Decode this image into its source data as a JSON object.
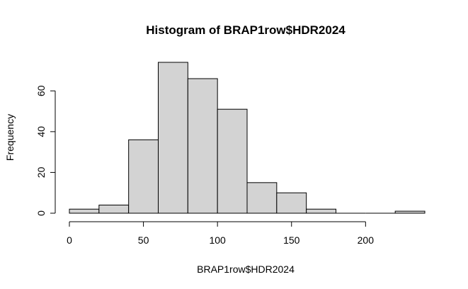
{
  "chart_data": {
    "type": "bar",
    "title": "Histogram of BRAP1row$HDR2024",
    "xlabel": "BRAP1row$HDR2024",
    "ylabel": "Frequency",
    "bins": [
      {
        "start": 0,
        "end": 20,
        "count": 2
      },
      {
        "start": 20,
        "end": 40,
        "count": 4
      },
      {
        "start": 40,
        "end": 60,
        "count": 36
      },
      {
        "start": 60,
        "end": 80,
        "count": 74
      },
      {
        "start": 80,
        "end": 100,
        "count": 66
      },
      {
        "start": 100,
        "end": 120,
        "count": 51
      },
      {
        "start": 120,
        "end": 140,
        "count": 15
      },
      {
        "start": 140,
        "end": 160,
        "count": 10
      },
      {
        "start": 160,
        "end": 180,
        "count": 2
      },
      {
        "start": 180,
        "end": 200,
        "count": 0
      },
      {
        "start": 200,
        "end": 220,
        "count": 0
      },
      {
        "start": 220,
        "end": 240,
        "count": 1
      }
    ],
    "xlim": [
      0,
      240
    ],
    "ylim": [
      0,
      74
    ],
    "xticks": [
      0,
      50,
      100,
      150,
      200
    ],
    "yticks": [
      0,
      20,
      40,
      60
    ],
    "grid": false,
    "colors": {
      "bar_fill": "#d3d3d3",
      "bar_stroke": "#000000"
    }
  }
}
